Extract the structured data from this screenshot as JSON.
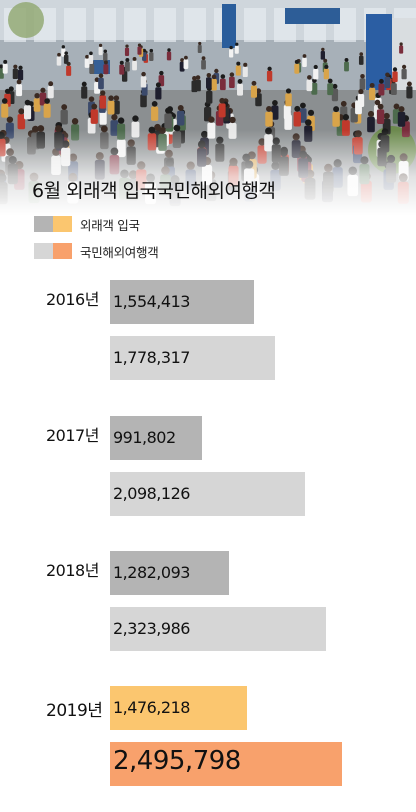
{
  "title": "6월 외래객 입국국민해외여행객",
  "legend": [
    {
      "name": "외래객 입국",
      "swatch_colors": [
        "#b4b4b4",
        "#fbc66f"
      ]
    },
    {
      "name": "국민해외여행객",
      "swatch_colors": [
        "#d6d6d6",
        "#f8a16c"
      ]
    }
  ],
  "colors": {
    "inbound_past": "#b4b4b4",
    "outbound_past": "#d6d6d6",
    "inbound_2019": "#fbc66f",
    "outbound_2019": "#f8a16c"
  },
  "chart_data": {
    "type": "bar",
    "orientation": "horizontal",
    "title": "6월 외래객 입국국민해외여행객",
    "categories": [
      "2016년",
      "2017년",
      "2018년",
      "2019년"
    ],
    "series": [
      {
        "name": "외래객 입국",
        "values": [
          1554413,
          991802,
          1282093,
          1476218
        ],
        "labels": [
          "1,554,413",
          "991,802",
          "1,282,093",
          "1,476,218"
        ]
      },
      {
        "name": "국민해외여행객",
        "values": [
          1778317,
          2098126,
          2323986,
          2495798
        ],
        "labels": [
          "1,778,317",
          "2,098,126",
          "2,323,986",
          "2,495,798"
        ]
      }
    ],
    "legend_placement": "top-left",
    "grid": false,
    "axes_visible": false
  }
}
